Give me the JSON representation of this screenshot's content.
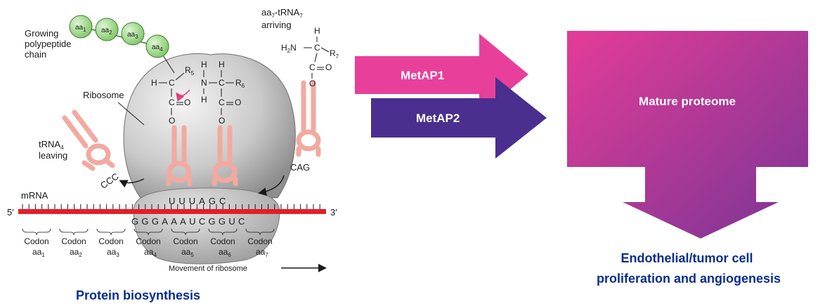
{
  "biosynthesis": {
    "growing_label_lines": [
      "Growing",
      "polypeptide",
      "chain"
    ],
    "aa_beads": [
      {
        "base": "aa",
        "sub": "1"
      },
      {
        "base": "aa",
        "sub": "2"
      },
      {
        "base": "aa",
        "sub": "3"
      },
      {
        "base": "aa",
        "sub": "4"
      }
    ],
    "arriving_label": {
      "base": "aa",
      "sub": "7",
      "mid": "-tRNA",
      "sub2": "7",
      "line2": "arriving"
    },
    "ribosome_label": "Ribosome",
    "trna_leaving": {
      "base": "tRNA",
      "sub": "4",
      "line2": "leaving"
    },
    "mrna_label": "mRNA",
    "five_prime": "5′",
    "three_prime": "3′",
    "anticodon_left": "CCC",
    "anticodon_right": "CAG",
    "anticodon_upper": "UUUAGC",
    "mrna_seq": "GGGAAAUCGGUC",
    "codons": [
      {
        "label": "Codon",
        "aa": "aa",
        "sub": "1"
      },
      {
        "label": "Codon",
        "aa": "aa",
        "sub": "2"
      },
      {
        "label": "Codon",
        "aa": "aa",
        "sub": "3"
      },
      {
        "label": "Codon",
        "aa": "aa",
        "sub": "4"
      },
      {
        "label": "Codon",
        "aa": "aa",
        "sub": "5"
      },
      {
        "label": "Codon",
        "aa": "aa",
        "sub": "6"
      },
      {
        "label": "Codon",
        "aa": "aa",
        "sub": "7"
      }
    ],
    "movement_label": "Movement of ribosome",
    "chem": {
      "H": "H",
      "C": "C",
      "N": "N",
      "O": "O",
      "R5": {
        "base": "R",
        "sub": "5"
      },
      "R6": {
        "base": "R",
        "sub": "6"
      },
      "R7": {
        "base": "R",
        "sub": "7"
      },
      "H2N": {
        "base": "H",
        "sub": "2",
        "tail": "N"
      }
    },
    "caption": "Protein biosynthesis"
  },
  "arrows": {
    "metap1": {
      "label": "MetAP1",
      "color": "#e8409a"
    },
    "metap2": {
      "label": "MetAP2",
      "color": "#4a2f8f"
    }
  },
  "proteome": {
    "label": "Mature proteome",
    "gradient_colors": [
      "#e43c97",
      "#7a3596"
    ]
  },
  "outcome": {
    "lines": [
      "Endothelial/tumor cell",
      "proliferation and angiogenesis"
    ],
    "color": "#0a2d8f"
  }
}
